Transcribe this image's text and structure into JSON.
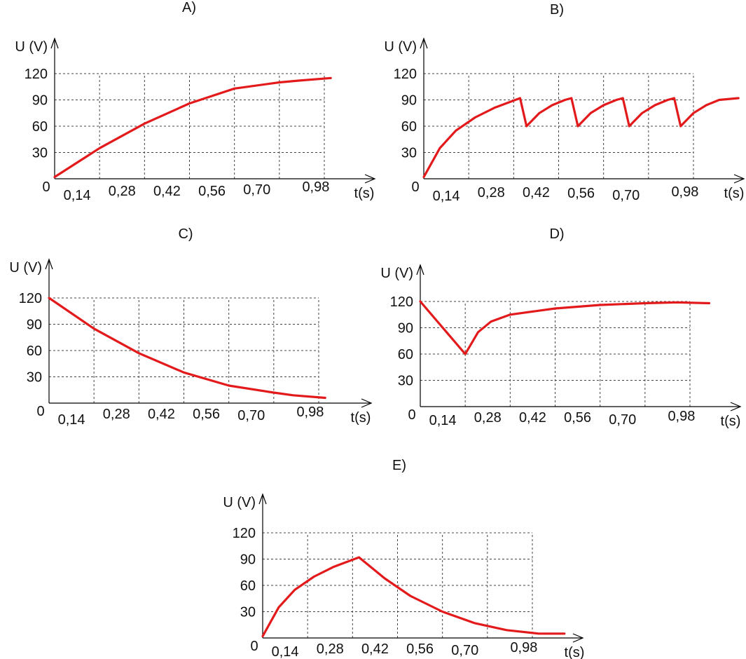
{
  "colors": {
    "curve": "#e31a1c",
    "grid": "#444444",
    "axis": "#000000"
  },
  "chart_data": [
    {
      "type": "line",
      "title": "A)",
      "ylabel": "U (V)",
      "xlabel": "t(s)",
      "origin_label": "0",
      "x_tick_labels": [
        "0,14",
        "0,28",
        "0,42",
        "0,56",
        "0,70",
        "0,98"
      ],
      "y_tick_labels": [
        "30",
        "60",
        "90",
        "120"
      ],
      "y_ticks": [
        30,
        60,
        90,
        120
      ],
      "ylim": [
        0,
        120
      ],
      "grid": true,
      "series": [
        {
          "points": [
            [
              0,
              2
            ],
            [
              0.14,
              35
            ],
            [
              0.28,
              63
            ],
            [
              0.42,
              86
            ],
            [
              0.56,
              103
            ],
            [
              0.7,
              110
            ],
            [
              0.76,
              112
            ],
            [
              0.86,
              115
            ]
          ]
        }
      ]
    },
    {
      "type": "line",
      "title": "B)",
      "ylabel": "U (V)",
      "xlabel": "t(s)",
      "origin_label": "0",
      "x_tick_labels": [
        "0,14",
        "0,28",
        "0,42",
        "0,56",
        "0,70",
        "0,98"
      ],
      "y_tick_labels": [
        "30",
        "60",
        "90",
        "120"
      ],
      "y_ticks": [
        30,
        60,
        90,
        120
      ],
      "ylim": [
        0,
        120
      ],
      "grid": true,
      "series": [
        {
          "points": [
            [
              0,
              2
            ],
            [
              0.05,
              35
            ],
            [
              0.1,
              55
            ],
            [
              0.16,
              70
            ],
            [
              0.22,
              81
            ],
            [
              0.3,
              92
            ],
            [
              0.32,
              60
            ],
            [
              0.36,
              75
            ],
            [
              0.4,
              84
            ],
            [
              0.44,
              90
            ],
            [
              0.46,
              92
            ],
            [
              0.48,
              60
            ],
            [
              0.52,
              75
            ],
            [
              0.56,
              84
            ],
            [
              0.6,
              90
            ],
            [
              0.62,
              92
            ],
            [
              0.64,
              60
            ],
            [
              0.68,
              75
            ],
            [
              0.72,
              84
            ],
            [
              0.76,
              90
            ],
            [
              0.78,
              92
            ],
            [
              0.8,
              60
            ],
            [
              0.84,
              75
            ],
            [
              0.88,
              84
            ],
            [
              0.92,
              90
            ],
            [
              0.98,
              92
            ]
          ]
        }
      ]
    },
    {
      "type": "line",
      "title": "C)",
      "ylabel": "U (V)",
      "xlabel": "t(s)",
      "origin_label": "0",
      "x_tick_labels": [
        "0,14",
        "0,28",
        "0,42",
        "0,56",
        "0,70",
        "0,98"
      ],
      "y_tick_labels": [
        "30",
        "60",
        "90",
        "120"
      ],
      "y_ticks": [
        30,
        60,
        90,
        120
      ],
      "ylim": [
        0,
        120
      ],
      "grid": true,
      "series": [
        {
          "points": [
            [
              0,
              120
            ],
            [
              0.14,
              85
            ],
            [
              0.28,
              57
            ],
            [
              0.42,
              35
            ],
            [
              0.56,
              20
            ],
            [
              0.7,
              12
            ],
            [
              0.76,
              9
            ],
            [
              0.86,
              6
            ]
          ]
        }
      ]
    },
    {
      "type": "line",
      "title": "D)",
      "ylabel": "U (V)",
      "xlabel": "t(s)",
      "origin_label": "0",
      "x_tick_labels": [
        "0,14",
        "0,28",
        "0,42",
        "0,56",
        "0,70",
        "0,98"
      ],
      "y_tick_labels": [
        "30",
        "60",
        "90",
        "120"
      ],
      "y_ticks": [
        30,
        60,
        90,
        120
      ],
      "ylim": [
        0,
        120
      ],
      "grid": true,
      "series": [
        {
          "points": [
            [
              0,
              120
            ],
            [
              0.14,
              60
            ],
            [
              0.18,
              85
            ],
            [
              0.22,
              97
            ],
            [
              0.28,
              105
            ],
            [
              0.42,
              112
            ],
            [
              0.56,
              116
            ],
            [
              0.7,
              118
            ],
            [
              0.8,
              119
            ],
            [
              0.9,
              118
            ]
          ]
        }
      ]
    },
    {
      "type": "line",
      "title": "E)",
      "ylabel": "U (V)",
      "xlabel": "t(s)",
      "origin_label": "0",
      "x_tick_labels": [
        "0,14",
        "0,28",
        "0,42",
        "0,56",
        "0,70",
        "0,98"
      ],
      "y_tick_labels": [
        "30",
        "60",
        "90",
        "120"
      ],
      "y_ticks": [
        30,
        60,
        90,
        120
      ],
      "ylim": [
        0,
        120
      ],
      "grid": true,
      "series": [
        {
          "points": [
            [
              0,
              2
            ],
            [
              0.05,
              35
            ],
            [
              0.1,
              55
            ],
            [
              0.16,
              70
            ],
            [
              0.22,
              81
            ],
            [
              0.3,
              92
            ],
            [
              0.38,
              68
            ],
            [
              0.46,
              48
            ],
            [
              0.56,
              30
            ],
            [
              0.66,
              17
            ],
            [
              0.76,
              9
            ],
            [
              0.86,
              5
            ],
            [
              0.94,
              5
            ]
          ]
        }
      ]
    }
  ]
}
